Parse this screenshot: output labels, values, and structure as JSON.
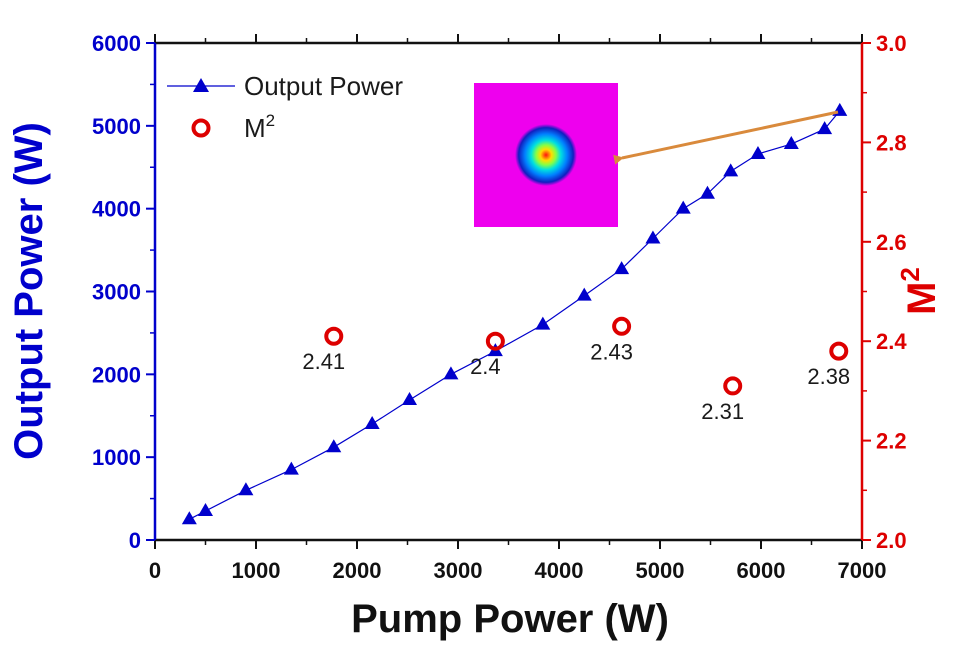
{
  "chart_data": {
    "type": "scatter",
    "xlabel": "Pump Power (W)",
    "ylabel": "Output Power (W)",
    "y2label": "M",
    "y2label_sup": "2",
    "xlim": [
      0,
      7000
    ],
    "ylim": [
      0,
      6000
    ],
    "y2lim": [
      2.0,
      3.0
    ],
    "xticks": [
      "0",
      "1000",
      "2000",
      "3000",
      "4000",
      "5000",
      "6000",
      "7000"
    ],
    "yticks": [
      "0",
      "1000",
      "2000",
      "3000",
      "4000",
      "5000",
      "6000"
    ],
    "y2ticks": [
      "2.0",
      "2.2",
      "2.4",
      "2.6",
      "2.8",
      "3.0"
    ],
    "grid": false,
    "legend_position": "top-left",
    "colors": {
      "left_axis": "#0000cc",
      "right_axis": "#dd0000",
      "series1": "#0000cc",
      "series2": "#dd0000",
      "arrow": "#d98a3c"
    },
    "series": [
      {
        "name": "Output Power",
        "axis": "left",
        "marker": "triangle",
        "line": true,
        "x": [
          340,
          500,
          900,
          1350,
          1770,
          2150,
          2520,
          2930,
          3370,
          3840,
          4250,
          4620,
          4930,
          5230,
          5470,
          5700,
          5970,
          6300,
          6630,
          6780
        ],
        "y": [
          250,
          350,
          600,
          850,
          1120,
          1400,
          1690,
          2000,
          2280,
          2600,
          2950,
          3270,
          3640,
          4000,
          4180,
          4450,
          4660,
          4780,
          4960,
          5180
        ]
      },
      {
        "name": "M",
        "name_sup": "2",
        "axis": "right",
        "marker": "circle",
        "line": false,
        "x": [
          1770,
          3370,
          4620,
          5720,
          6770
        ],
        "y": [
          2.41,
          2.4,
          2.43,
          2.31,
          2.38
        ],
        "labels": [
          "2.41",
          "2.4",
          "2.43",
          "2.31",
          "2.38"
        ]
      }
    ],
    "inset": {
      "type": "beam-profile-image",
      "background": "#ee00ee",
      "arrow_to_point": {
        "x": 6780,
        "y": 5180
      }
    }
  }
}
